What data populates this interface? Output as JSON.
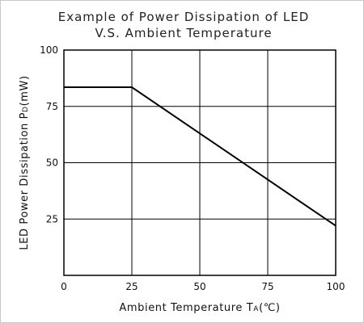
{
  "chart_data": {
    "type": "line",
    "title_line1": "Example of Power Dissipation of LED",
    "title_line2": "V.S. Ambient Temperature",
    "xlabel_main": "Ambient Temperature T",
    "xlabel_sub": "A",
    "xlabel_unit": "(℃)",
    "ylabel_main": "LED Power Dissipation P",
    "ylabel_sub": "D",
    "ylabel_unit": "(mW)",
    "xlim": [
      0,
      100
    ],
    "ylim": [
      0,
      100
    ],
    "x_ticks": [
      0,
      25,
      50,
      75,
      100
    ],
    "y_ticks": [
      25,
      50,
      75,
      100
    ],
    "x_tick_labels": [
      "0",
      "25",
      "50",
      "75",
      "100"
    ],
    "y_tick_labels": [
      "25",
      "50",
      "75",
      "100"
    ],
    "grid": true,
    "series": [
      {
        "x": [
          0,
          25,
          100
        ],
        "y": [
          83.5,
          83.5,
          22
        ],
        "color": "#000000"
      }
    ]
  }
}
